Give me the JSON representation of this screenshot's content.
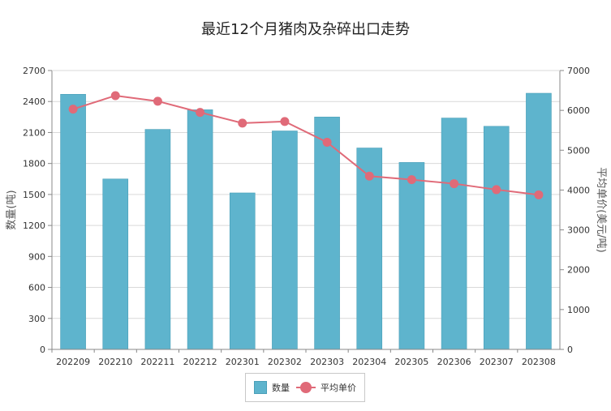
{
  "chart_data": {
    "type": "bar",
    "title": "最近12个月猪肉及杂碎出口走势",
    "categories": [
      "202209",
      "202210",
      "202211",
      "202212",
      "202301",
      "202302",
      "202303",
      "202304",
      "202305",
      "202306",
      "202307",
      "202308"
    ],
    "series": [
      {
        "name": "数量",
        "type": "bar",
        "axis": "left",
        "values": [
          2470,
          1650,
          2130,
          2320,
          1515,
          2115,
          2250,
          1950,
          1810,
          2240,
          2160,
          2480
        ]
      },
      {
        "name": "平均单价",
        "type": "line",
        "axis": "right",
        "values": [
          6030,
          6370,
          6230,
          5950,
          5680,
          5720,
          5200,
          4350,
          4260,
          4160,
          4010,
          3880
        ]
      }
    ],
    "ylabel_left": "数量(吨)",
    "ylabel_right": "平均单价(美元/吨)",
    "ylim_left": [
      0,
      2700
    ],
    "ylim_right": [
      0,
      7000
    ],
    "yticks_left": [
      "0",
      "300",
      "600",
      "900",
      "1200",
      "1500",
      "1800",
      "2100",
      "2400",
      "2700"
    ],
    "yticks_right": [
      "0",
      "1000",
      "2000",
      "3000",
      "4000",
      "5000",
      "6000",
      "7000"
    ],
    "grid": true,
    "legend_position": "bottom-center",
    "colors": {
      "bar": "#5eb4cd",
      "bar_border": "#4a9fb8",
      "line": "#e06a78",
      "grid": "#d9d9d9"
    }
  }
}
